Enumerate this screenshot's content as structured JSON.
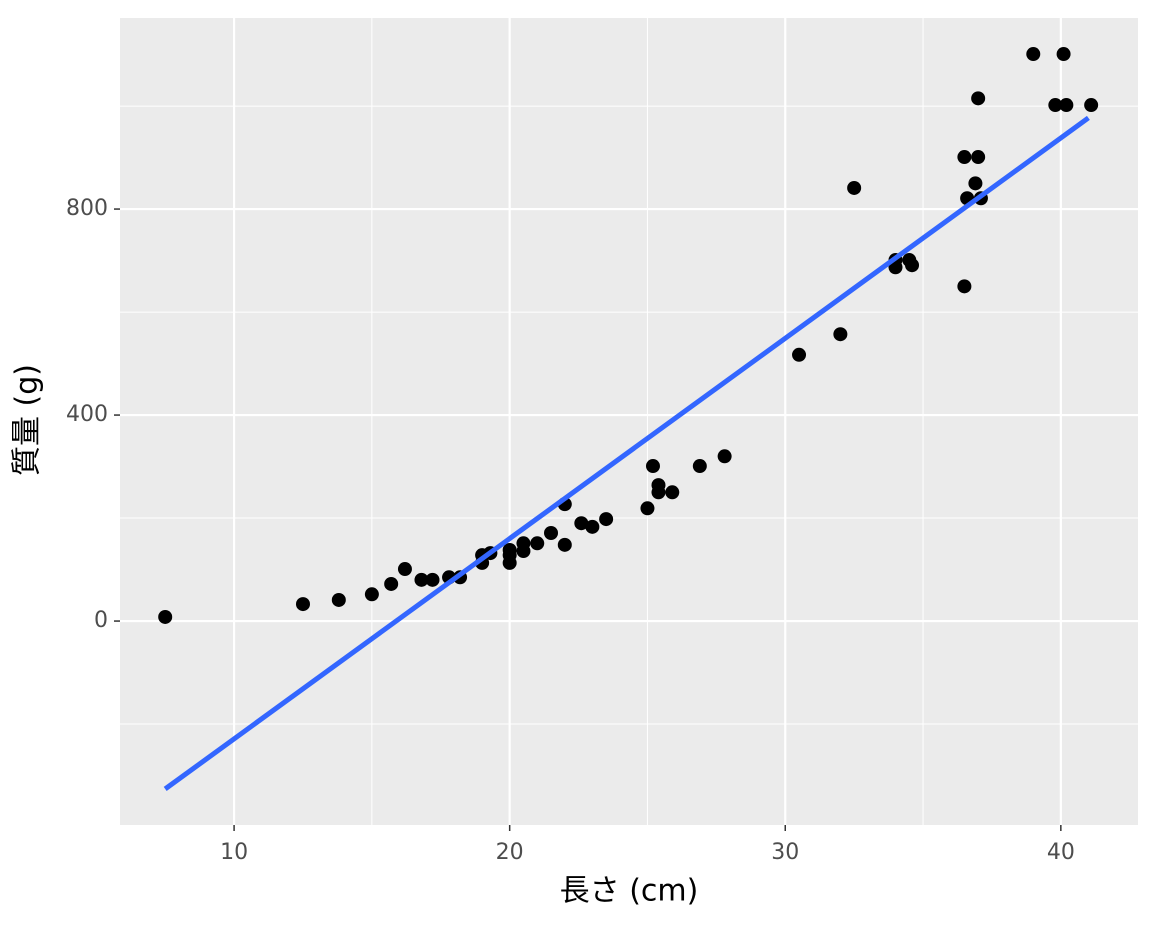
{
  "chart_data": {
    "type": "scatter",
    "x_label": "長さ (cm)",
    "y_label": "質量 (g)",
    "xlim": [
      5.86,
      42.8
    ],
    "ylim": [
      -396,
      1171
    ],
    "xticks": [
      10,
      20,
      30,
      40
    ],
    "yticks": [
      0,
      400,
      800
    ],
    "x_minor_ticks": [
      15,
      25,
      35
    ],
    "y_minor_ticks": [
      -200,
      200,
      600,
      1000
    ],
    "grid": true,
    "background": "#ebebeb",
    "color": "#000000",
    "x": [
      7.5,
      12.5,
      13.8,
      15.0,
      15.7,
      16.2,
      16.8,
      17.2,
      17.8,
      18.2,
      19.0,
      19.0,
      19.3,
      20.0,
      20.0,
      20.0,
      20.5,
      20.5,
      21.0,
      21.5,
      22.0,
      22.0,
      22.6,
      23.0,
      23.5,
      25.0,
      25.2,
      25.4,
      25.4,
      25.9,
      26.9,
      27.8,
      30.5,
      32.0,
      32.5,
      34.0,
      34.0,
      34.5,
      34.6,
      36.5,
      36.5,
      36.6,
      36.9,
      37.0,
      37.0,
      37.1,
      39.0,
      39.8,
      40.1,
      40.2,
      41.1
    ],
    "values": [
      8,
      33,
      41,
      52,
      72,
      101,
      80,
      80,
      85,
      85,
      113,
      128,
      132,
      113,
      138,
      128,
      136,
      151,
      151,
      171,
      227,
      148,
      190,
      183,
      198,
      219,
      301,
      264,
      250,
      250,
      301,
      320,
      517,
      557,
      841,
      701,
      687,
      701,
      691,
      901,
      650,
      821,
      850,
      901,
      1015,
      821,
      1101,
      1002,
      1101,
      1002,
      1002
    ],
    "fit": {
      "x": [
        7.5,
        41.0
      ],
      "values": [
        -326,
        977
      ],
      "color": "#3366ff"
    }
  }
}
